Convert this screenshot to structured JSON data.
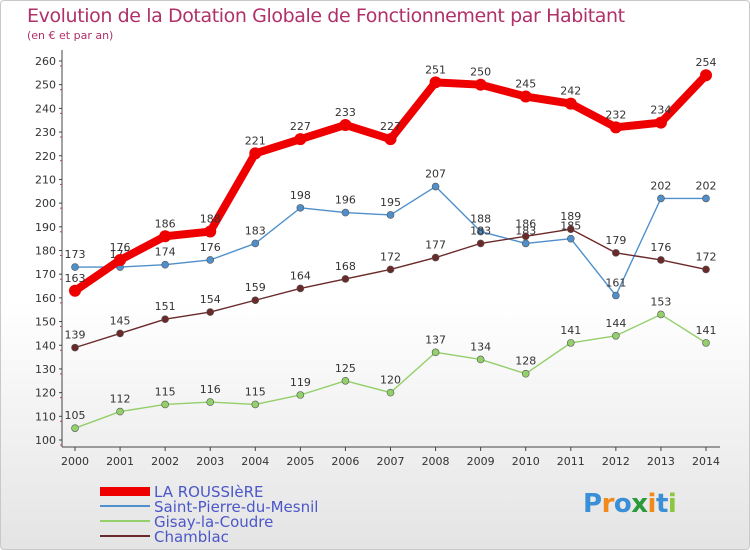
{
  "header": {
    "title": "Evolution de la Dotation Globale de Fonctionnement par Habitant",
    "subtitle": "(en € et par an)"
  },
  "logo": {
    "letters": [
      "P",
      "r",
      "o",
      "x",
      "i",
      "t",
      "i"
    ],
    "colors": [
      "#3a8fd6",
      "#f08a1c",
      "#3a8fd6",
      "#2a9a3a",
      "#f08a1c",
      "#3a8fd6",
      "#8cc63f"
    ]
  },
  "chart_data": {
    "type": "line",
    "x": [
      "2000",
      "2001",
      "2002",
      "2003",
      "2004",
      "2005",
      "2006",
      "2007",
      "2008",
      "2009",
      "2010",
      "2011",
      "2012",
      "2013",
      "2014"
    ],
    "ylim": [
      100,
      260
    ],
    "yticks": [
      100,
      110,
      120,
      130,
      140,
      150,
      160,
      170,
      180,
      190,
      200,
      210,
      220,
      230,
      240,
      250,
      260
    ],
    "grid": false,
    "legend_position": "bottom-left",
    "series": [
      {
        "name": "LA ROUSSIèRE",
        "color": "#ee0000",
        "emphasis": true,
        "values": [
          163,
          176,
          186,
          188,
          221,
          227,
          233,
          227,
          251,
          250,
          245,
          242,
          232,
          234,
          254
        ]
      },
      {
        "name": "Saint-Pierre-du-Mesnil",
        "color": "#4f8fcb",
        "values": [
          173,
          173,
          174,
          176,
          183,
          198,
          196,
          195,
          207,
          188,
          183,
          185,
          161,
          202,
          202
        ]
      },
      {
        "name": "Gisay-la-Coudre",
        "color": "#93cf6a",
        "values": [
          105,
          112,
          115,
          116,
          115,
          119,
          125,
          120,
          137,
          134,
          128,
          141,
          144,
          153,
          141
        ]
      },
      {
        "name": "Chamblac",
        "color": "#6b2a2a",
        "values": [
          139,
          145,
          151,
          154,
          159,
          164,
          168,
          172,
          177,
          183,
          186,
          189,
          179,
          176,
          172
        ]
      }
    ]
  }
}
